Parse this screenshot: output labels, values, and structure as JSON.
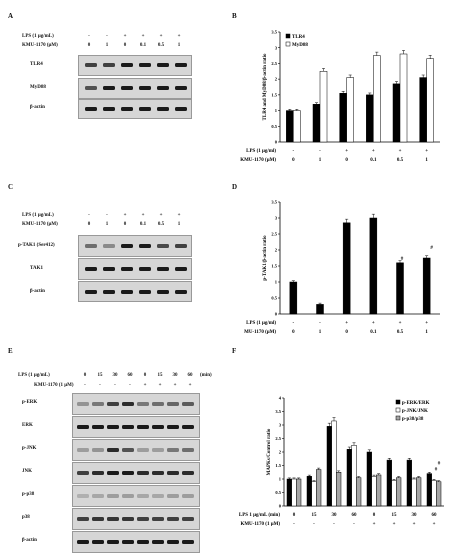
{
  "panels": {
    "A": {
      "letter": "A",
      "conditions": {
        "row1_label": "LPS (1 µg/mL)",
        "row2_label": "KMU-1170 (µM)",
        "row1": [
          "-",
          "-",
          "+",
          "+",
          "+",
          "+"
        ],
        "row2": [
          "0",
          "1",
          "0",
          "0.1",
          "0.5",
          "1"
        ]
      },
      "blots": [
        "TLR4",
        "MyD88",
        "β-actin"
      ]
    },
    "B": {
      "letter": "B",
      "conditions": {
        "row1_label": "LPS (1 µg/ml)",
        "row2_label": "KMU-1170 (µM)",
        "row1": [
          "-",
          "-",
          "+",
          "+",
          "+",
          "+"
        ],
        "row2": [
          "0",
          "1",
          "0",
          "0.1",
          "0.5",
          "1"
        ]
      }
    },
    "C": {
      "letter": "C",
      "conditions": {
        "row1_label": "LPS (1 µg/mL)",
        "row2_label": "KMU-1170 (µM)",
        "row1": [
          "-",
          "-",
          "+",
          "+",
          "+",
          "+"
        ],
        "row2": [
          "0",
          "1",
          "0",
          "0.1",
          "0.5",
          "1"
        ]
      },
      "blots": [
        "p-TAK1 (Ser412)",
        "TAK1",
        "β-actin"
      ]
    },
    "D": {
      "letter": "D",
      "conditions": {
        "row1_label": "LPS (1 µg/ml)",
        "row2_label": "MU-1170 (µM)",
        "row1": [
          "-",
          "-",
          "+",
          "+",
          "+",
          "+"
        ],
        "row2": [
          "0",
          "1",
          "0",
          "0.1",
          "0.5",
          "1"
        ]
      }
    },
    "E": {
      "letter": "E",
      "conditions": {
        "row1_label": "LPS (1 µg/mL)",
        "row2_label": "KMU-1170 (1 µM)",
        "row1": [
          "0",
          "15",
          "30",
          "60",
          "0",
          "15",
          "30",
          "60"
        ],
        "row2": [
          "-",
          "-",
          "-",
          "-",
          "+",
          "+",
          "+",
          "+"
        ],
        "unit": "(min)"
      },
      "blots": [
        "p-ERK",
        "ERK",
        "p-JNK",
        "JNK",
        "p-p38",
        "p38",
        "β-actin"
      ]
    },
    "F": {
      "letter": "F",
      "conditions": {
        "row1_label": "LPS 1 µg/mL (min)",
        "row2_label": "KMU-1170 (1 µM)",
        "row1": [
          "0",
          "15",
          "30",
          "60",
          "0",
          "15",
          "30",
          "60"
        ],
        "row2": [
          "-",
          "-",
          "-",
          "-",
          "+",
          "+",
          "+",
          "+"
        ]
      }
    }
  },
  "chart_data": [
    {
      "panel": "B",
      "type": "bar",
      "ylabel": "TLR4 and MyD88/β-actin ratio",
      "ylim": [
        0,
        3.5
      ],
      "yticks": [
        0,
        0.5,
        1,
        1.5,
        2,
        2.5,
        3,
        3.5
      ],
      "series": [
        {
          "name": "TLR4",
          "color": "#000000",
          "values": [
            1.0,
            1.2,
            1.55,
            1.5,
            1.85,
            2.05
          ]
        },
        {
          "name": "MyD88",
          "color": "#ffffff",
          "values": [
            1.0,
            2.25,
            2.05,
            2.75,
            2.8,
            2.65
          ]
        }
      ],
      "legend": "top-left"
    },
    {
      "panel": "D",
      "type": "bar",
      "ylabel": "p-TAK1/β-actin ratio",
      "ylim": [
        0,
        3.5
      ],
      "yticks": [
        0,
        0.5,
        1,
        1.5,
        2,
        2.5,
        3,
        3.5
      ],
      "series": [
        {
          "color": "#000000",
          "values": [
            1.0,
            0.3,
            2.85,
            3.0,
            1.6,
            1.75
          ]
        }
      ],
      "annotations": [
        {
          "index": 4,
          "text": "#"
        },
        {
          "index": 5,
          "text": "#"
        }
      ]
    },
    {
      "panel": "F",
      "type": "bar",
      "ylabel": "MAPKs/Control ratio",
      "ylim": [
        0,
        4
      ],
      "yticks": [
        0,
        0.5,
        1,
        1.5,
        2,
        2.5,
        3,
        3.5,
        4
      ],
      "series": [
        {
          "name": "p-ERK/ERK",
          "color": "#000000",
          "values": [
            1.0,
            1.1,
            2.95,
            2.1,
            2.0,
            1.7,
            1.7,
            1.2
          ]
        },
        {
          "name": "p-JNK/JNK",
          "color": "#ffffff",
          "values": [
            1.0,
            0.9,
            3.15,
            2.25,
            1.1,
            0.95,
            1.0,
            0.95
          ]
        },
        {
          "name": "p-p38/p38",
          "color": "#a6a6a6",
          "values": [
            1.0,
            1.35,
            1.25,
            1.05,
            1.15,
            1.05,
            1.05,
            0.9
          ]
        }
      ],
      "legend": "top-right",
      "annotations": [
        {
          "index": 7,
          "text": "#"
        },
        {
          "index": 7,
          "text": "#"
        }
      ]
    }
  ]
}
